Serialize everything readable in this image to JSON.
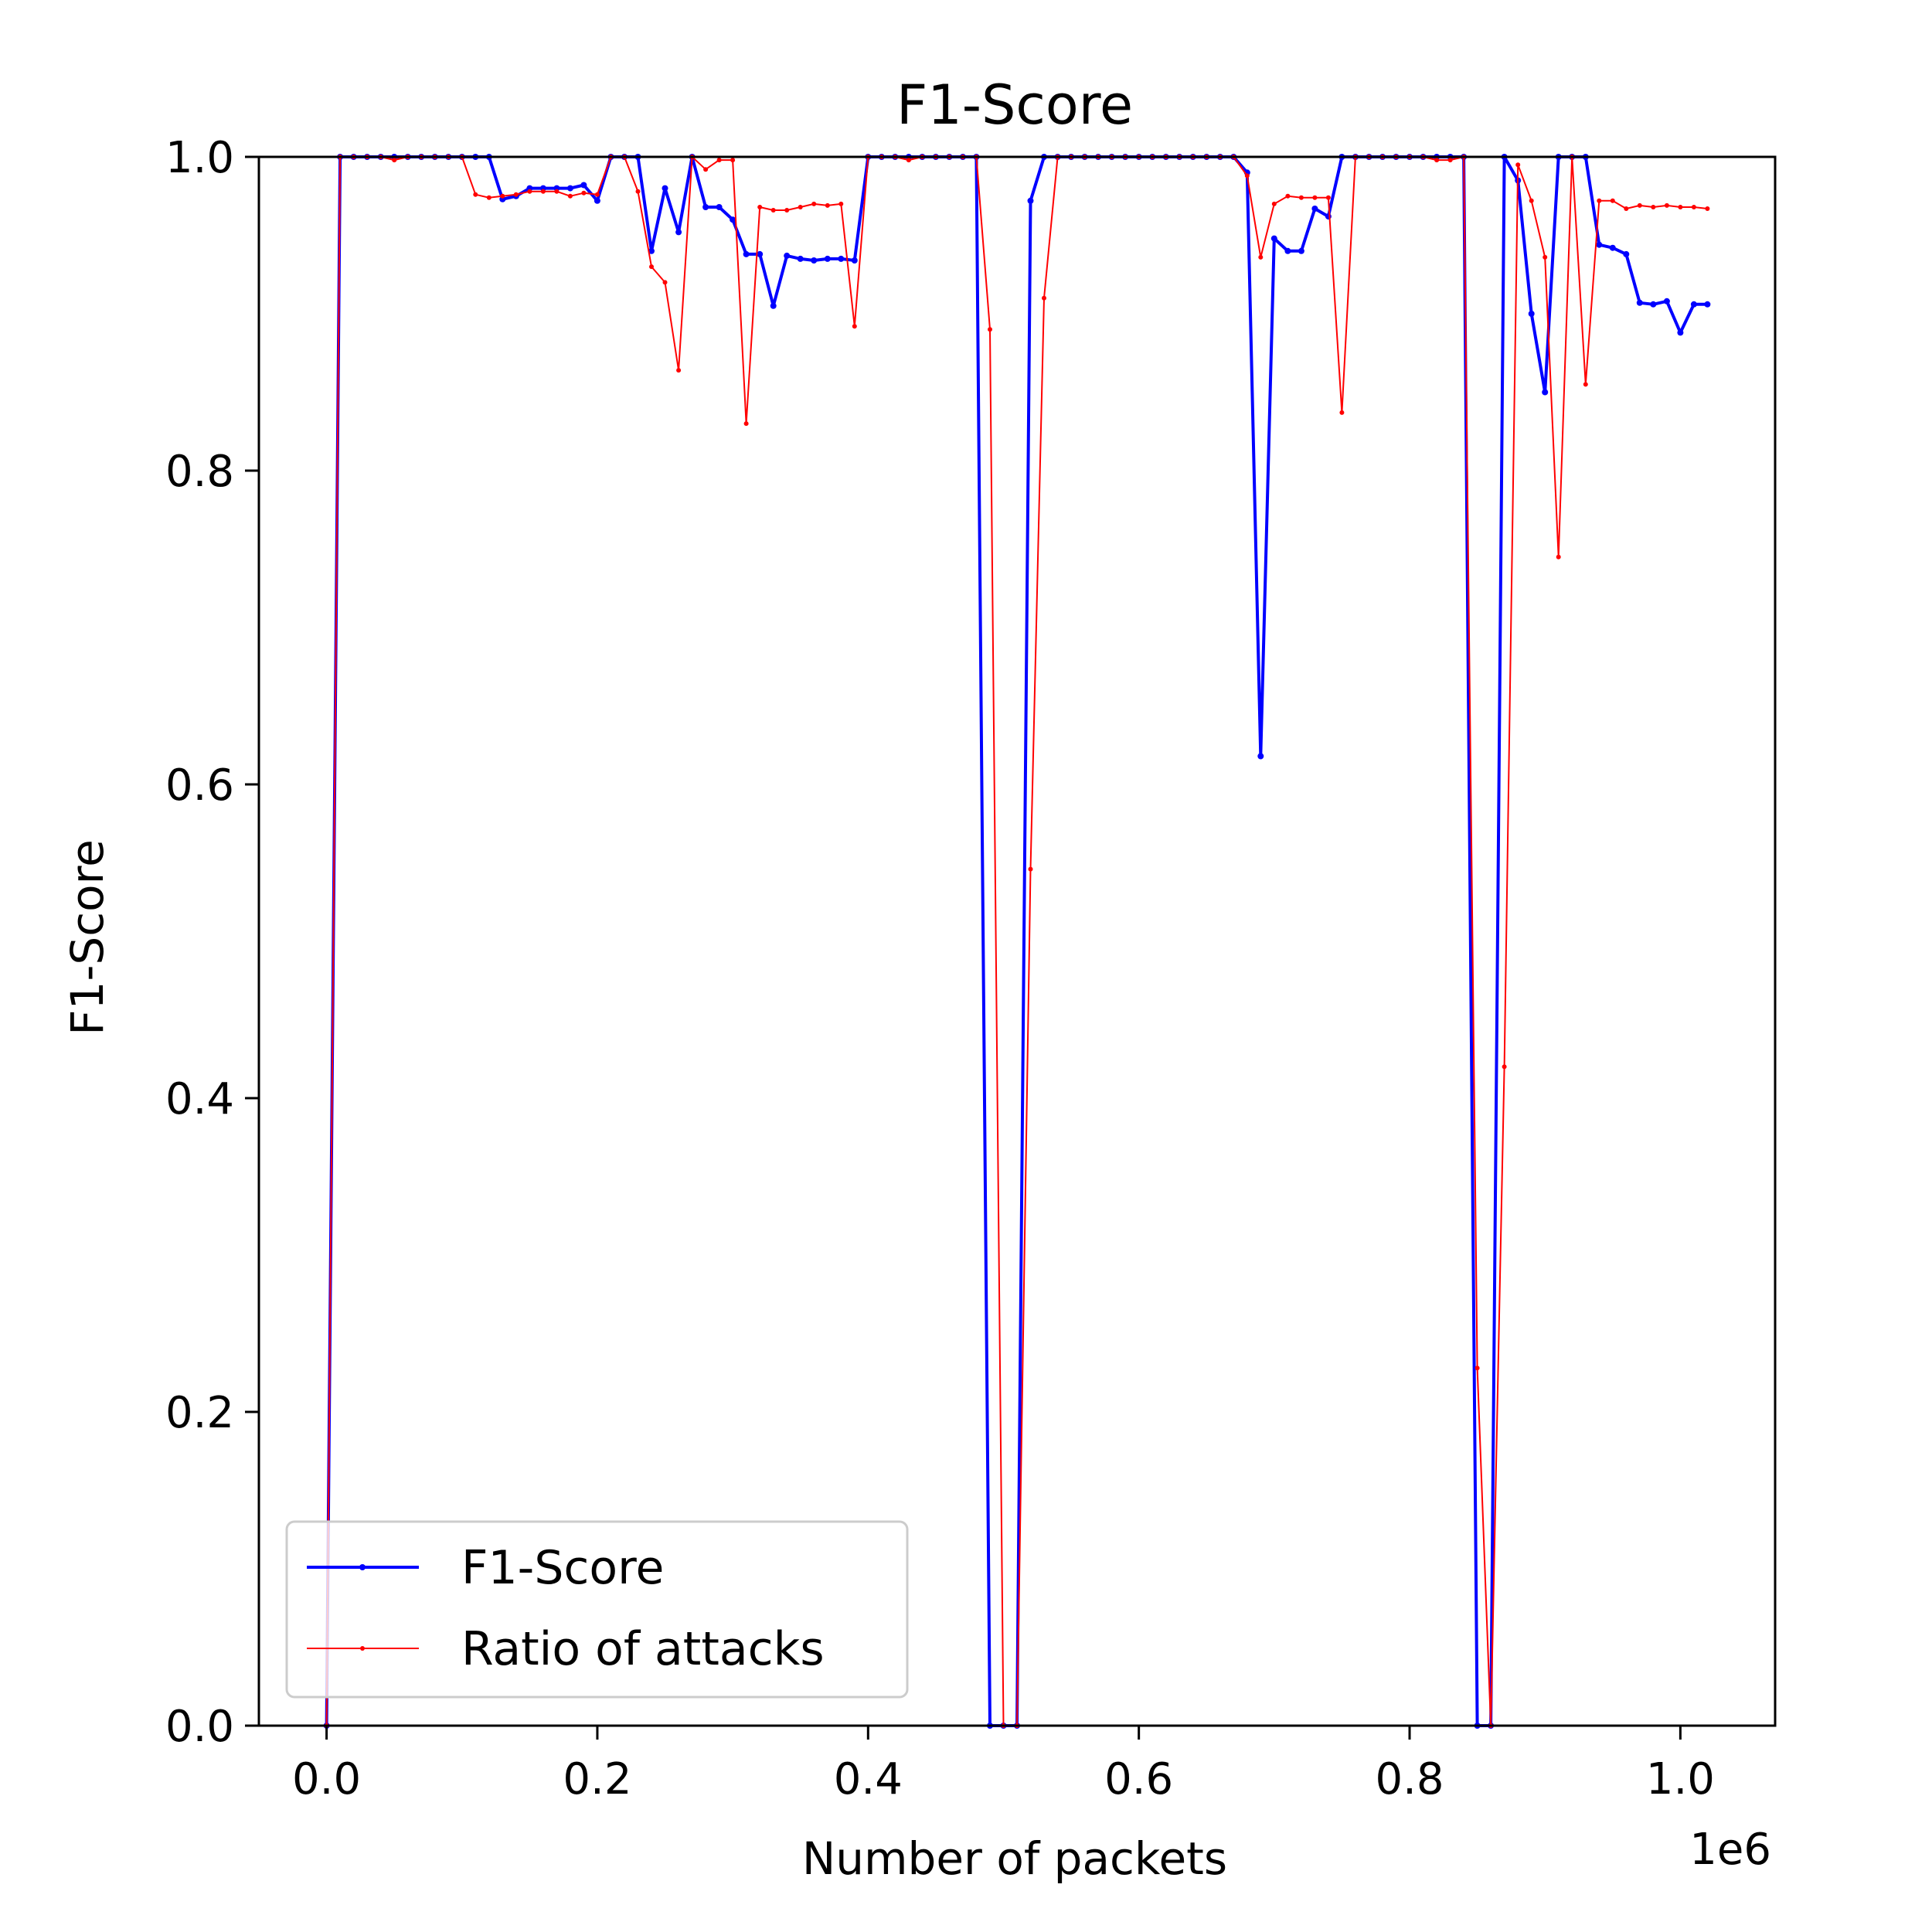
{
  "chart_data": {
    "type": "line",
    "title": "F1-Score",
    "xlabel": "Number of packets",
    "ylabel": "F1-Score",
    "x_offset_label": "1e6",
    "xlim": [
      -0.05,
      1.07
    ],
    "ylim": [
      0.0,
      1.0
    ],
    "x_ticks": [
      0.0,
      0.2,
      0.4,
      0.6,
      0.8,
      1.0
    ],
    "x_tick_labels": [
      "0.0",
      "0.2",
      "0.4",
      "0.6",
      "0.8",
      "1.0"
    ],
    "y_ticks": [
      0.0,
      0.2,
      0.4,
      0.6,
      0.8,
      1.0
    ],
    "y_tick_labels": [
      "0.0",
      "0.2",
      "0.4",
      "0.6",
      "0.8",
      "1.0"
    ],
    "grid": false,
    "legend_position": "lower-left",
    "x": [
      0.0,
      0.01,
      0.02,
      0.03,
      0.04,
      0.05,
      0.06,
      0.07,
      0.08,
      0.09,
      0.1,
      0.11,
      0.12,
      0.13,
      0.14,
      0.15,
      0.16,
      0.17,
      0.18,
      0.19,
      0.2,
      0.21,
      0.22,
      0.23,
      0.24,
      0.25,
      0.26,
      0.27,
      0.28,
      0.29,
      0.3,
      0.31,
      0.32,
      0.33,
      0.34,
      0.35,
      0.36,
      0.37,
      0.38,
      0.39,
      0.4,
      0.41,
      0.42,
      0.43,
      0.44,
      0.45,
      0.46,
      0.47,
      0.48,
      0.49,
      0.5,
      0.51,
      0.52,
      0.53,
      0.54,
      0.55,
      0.56,
      0.57,
      0.58,
      0.59,
      0.6,
      0.61,
      0.62,
      0.63,
      0.64,
      0.65,
      0.66,
      0.67,
      0.68,
      0.69,
      0.7,
      0.71,
      0.72,
      0.73,
      0.74,
      0.75,
      0.76,
      0.77,
      0.78,
      0.79,
      0.8,
      0.81,
      0.82,
      0.83,
      0.84,
      0.85,
      0.86,
      0.87,
      0.88,
      0.89,
      0.9,
      0.91,
      0.92,
      0.93,
      0.94,
      0.95,
      0.96,
      0.97,
      0.98,
      0.99,
      1.0,
      1.01,
      1.02
    ],
    "series": [
      {
        "name": "F1-Score",
        "color": "#0000ff",
        "values": [
          0.0,
          1.0,
          1.0,
          1.0,
          1.0,
          1.0,
          1.0,
          1.0,
          1.0,
          1.0,
          1.0,
          1.0,
          1.0,
          0.973,
          0.975,
          0.98,
          0.98,
          0.98,
          0.98,
          0.982,
          0.972,
          1.0,
          1.0,
          1.0,
          0.94,
          0.98,
          0.952,
          1.0,
          0.968,
          0.968,
          0.96,
          0.938,
          0.938,
          0.905,
          0.937,
          0.935,
          0.934,
          0.935,
          0.935,
          0.934,
          1.0,
          1.0,
          1.0,
          1.0,
          1.0,
          1.0,
          1.0,
          1.0,
          1.0,
          0.0,
          0.0,
          0.0,
          0.972,
          1.0,
          1.0,
          1.0,
          1.0,
          1.0,
          1.0,
          1.0,
          1.0,
          1.0,
          1.0,
          1.0,
          1.0,
          1.0,
          1.0,
          1.0,
          0.99,
          0.618,
          0.948,
          0.94,
          0.94,
          0.967,
          0.962,
          1.0,
          1.0,
          1.0,
          1.0,
          1.0,
          1.0,
          1.0,
          1.0,
          1.0,
          1.0,
          0.0,
          0.0,
          1.0,
          0.985,
          0.9,
          0.85,
          1.0,
          1.0,
          1.0,
          0.944,
          0.942,
          0.938,
          0.907,
          0.906,
          0.908,
          0.888,
          0.906,
          0.906
        ]
      },
      {
        "name": "Ratio of attacks",
        "color": "#ff0000",
        "values": [
          0.0,
          1.0,
          1.0,
          1.0,
          1.0,
          0.998,
          1.0,
          1.0,
          1.0,
          1.0,
          1.0,
          0.976,
          0.974,
          0.975,
          0.976,
          0.978,
          0.978,
          0.978,
          0.975,
          0.977,
          0.976,
          1.0,
          1.0,
          0.978,
          0.93,
          0.92,
          0.864,
          1.0,
          0.992,
          0.998,
          0.998,
          0.83,
          0.968,
          0.966,
          0.966,
          0.968,
          0.97,
          0.969,
          0.97,
          0.892,
          1.0,
          1.0,
          1.0,
          0.998,
          1.0,
          1.0,
          1.0,
          1.0,
          1.0,
          0.89,
          0.0,
          0.0,
          0.546,
          0.91,
          1.0,
          1.0,
          1.0,
          1.0,
          1.0,
          1.0,
          1.0,
          1.0,
          1.0,
          1.0,
          1.0,
          1.0,
          1.0,
          1.0,
          0.988,
          0.936,
          0.97,
          0.975,
          0.974,
          0.974,
          0.974,
          0.837,
          1.0,
          1.0,
          1.0,
          1.0,
          1.0,
          1.0,
          0.998,
          0.998,
          1.0,
          0.228,
          0.0,
          0.42,
          0.995,
          0.972,
          0.936,
          0.745,
          1.0,
          0.855,
          0.972,
          0.972,
          0.967,
          0.969,
          0.968,
          0.969,
          0.968,
          0.968,
          0.967
        ]
      }
    ]
  }
}
